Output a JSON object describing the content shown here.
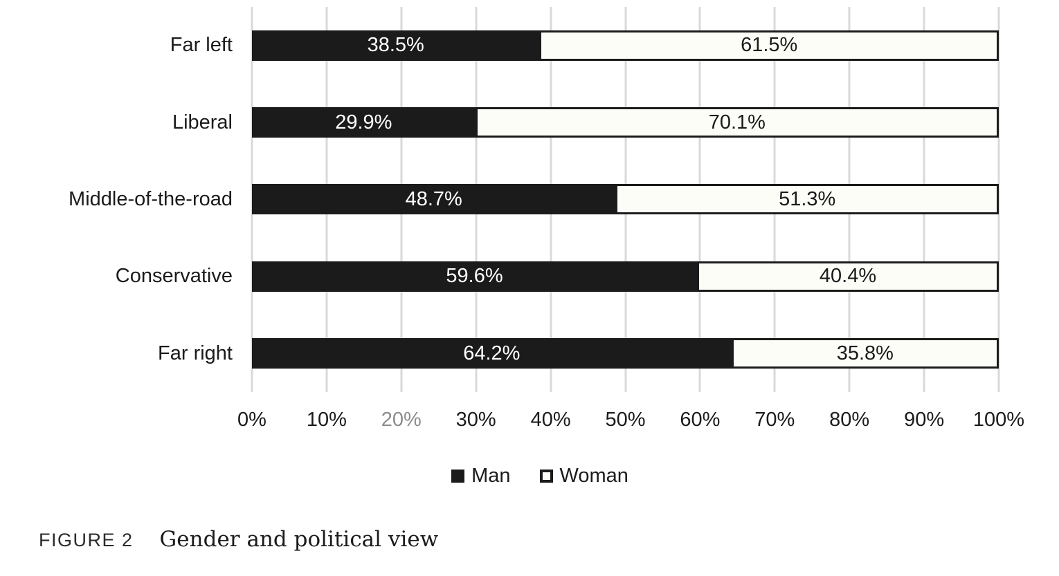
{
  "colors": {
    "man_fill": "#1b1b1b",
    "woman_fill": "#fdfdf8",
    "bar_border": "#1b1b1b",
    "gridline": "#d9d9d9",
    "tick_default": "#1b1b1b",
    "tick_muted": "#8c8c8c",
    "man_label_text": "#ffffff",
    "woman_label_text": "#1b1b1b"
  },
  "chart_data": {
    "type": "bar",
    "orientation": "horizontal",
    "stacked": true,
    "grid": true,
    "categories": [
      "Far left",
      "Liberal",
      "Middle-of-the-road",
      "Conservative",
      "Far right"
    ],
    "series": [
      {
        "name": "Man",
        "values": [
          38.5,
          29.9,
          48.7,
          59.6,
          64.2
        ],
        "labels": [
          "38.5%",
          "29.9%",
          "48.7%",
          "59.6%",
          "64.2%"
        ]
      },
      {
        "name": "Woman",
        "values": [
          61.5,
          70.1,
          51.3,
          40.4,
          35.8
        ],
        "labels": [
          "61.5%",
          "70.1%",
          "51.3%",
          "40.4%",
          "35.8%"
        ]
      }
    ],
    "xlim": [
      0,
      100
    ],
    "x_ticks": [
      "0%",
      "10%",
      "20%",
      "30%",
      "40%",
      "50%",
      "60%",
      "70%",
      "80%",
      "90%",
      "100%"
    ],
    "muted_ticks": [
      "20%"
    ],
    "legend": [
      "Man",
      "Woman"
    ],
    "legend_position": "bottom",
    "title": "Gender and political view"
  },
  "caption": {
    "label": "FIGURE 2",
    "title": "Gender and political view"
  }
}
